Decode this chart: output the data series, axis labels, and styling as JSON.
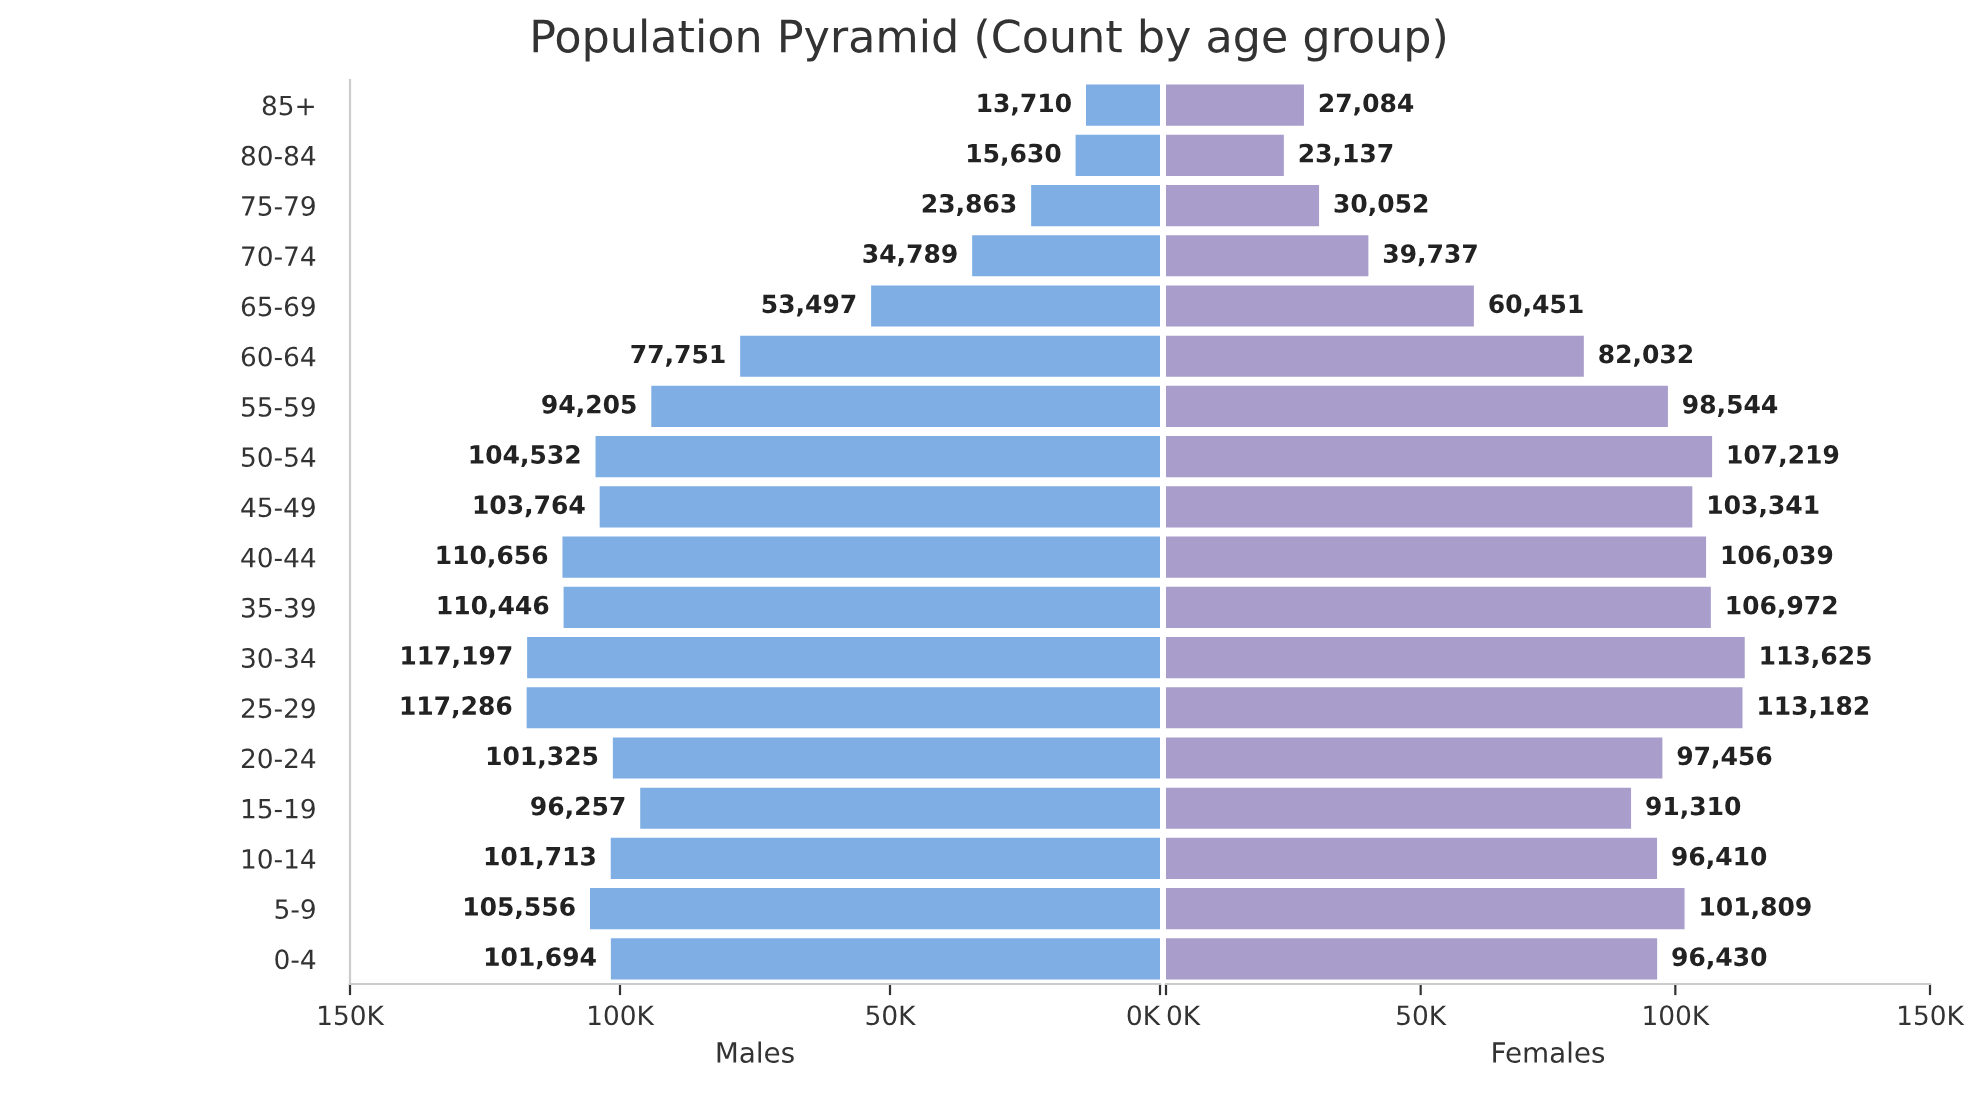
{
  "chart_data": [
    {
      "type": "bar",
      "orientation": "horizontal",
      "title": "Population Pyramid (Count by age group)",
      "xlabel": "Males",
      "categories": [
        "85+",
        "80-84",
        "75-79",
        "70-74",
        "65-69",
        "60-64",
        "55-59",
        "50-54",
        "45-49",
        "40-44",
        "35-39",
        "30-34",
        "25-29",
        "20-24",
        "15-19",
        "10-14",
        "5-9",
        "0-4"
      ],
      "values": [
        13710,
        15630,
        23863,
        34789,
        53497,
        77751,
        94205,
        104532,
        103764,
        110656,
        110446,
        117197,
        117286,
        101325,
        96257,
        101713,
        105556,
        101694
      ],
      "value_labels": [
        "13,710",
        "15,630",
        "23,863",
        "34,789",
        "53,497",
        "77,751",
        "94,205",
        "104,532",
        "103,764",
        "110,656",
        "110,446",
        "117,197",
        "117,286",
        "101,325",
        "96,257",
        "101,713",
        "105,556",
        "101,694"
      ],
      "color": "#7eaee3",
      "xlim": [
        150000,
        0
      ],
      "xticks": [
        {
          "value": 150000,
          "label": "150K"
        },
        {
          "value": 100000,
          "label": "100K"
        },
        {
          "value": 50000,
          "label": "50K"
        },
        {
          "value": 0,
          "label": "0K"
        }
      ],
      "grid": false
    },
    {
      "type": "bar",
      "orientation": "horizontal",
      "xlabel": "Females",
      "values": [
        27084,
        23137,
        30052,
        39737,
        60451,
        82032,
        98544,
        107219,
        103341,
        106039,
        106972,
        113625,
        113182,
        97456,
        91310,
        96410,
        101809,
        96430
      ],
      "value_labels": [
        "27,084",
        "23,137",
        "30,052",
        "39,737",
        "60,451",
        "82,032",
        "98,544",
        "107,219",
        "103,341",
        "106,039",
        "106,972",
        "113,625",
        "113,182",
        "97,456",
        "91,310",
        "96,410",
        "101,809",
        "96,430"
      ],
      "color": "#a89dcb",
      "xlim": [
        0,
        150000
      ],
      "xticks": [
        {
          "value": 0,
          "label": "0K"
        },
        {
          "value": 50000,
          "label": "50K"
        },
        {
          "value": 100000,
          "label": "100K"
        },
        {
          "value": 150000,
          "label": "150K"
        }
      ],
      "tick_labels": "x",
      "grid": false
    }
  ]
}
